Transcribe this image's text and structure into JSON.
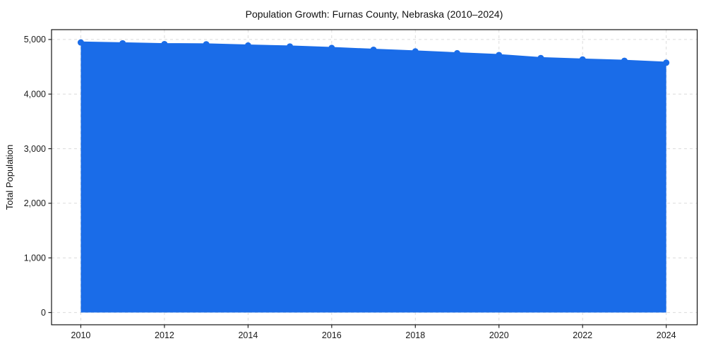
{
  "figure": {
    "background": "#ffffff",
    "plot_background": "#ffffff"
  },
  "chart_data": {
    "type": "area",
    "title": "Population Growth: Furnas County, Nebraska (2010–2024)",
    "xlabel": "",
    "ylabel": "Total Population",
    "x": [
      2010,
      2011,
      2012,
      2013,
      2014,
      2015,
      2016,
      2017,
      2018,
      2019,
      2020,
      2021,
      2022,
      2023,
      2024
    ],
    "series": [
      {
        "name": "Total Population",
        "values": [
          4945,
          4930,
          4915,
          4912,
          4890,
          4872,
          4845,
          4812,
          4782,
          4748,
          4715,
          4660,
          4634,
          4610,
          4575
        ]
      }
    ],
    "x_ticks": [
      2010,
      2012,
      2014,
      2016,
      2018,
      2020,
      2022,
      2024
    ],
    "x_tick_labels": [
      "2010",
      "2012",
      "2014",
      "2016",
      "2018",
      "2020",
      "2022",
      "2024"
    ],
    "y_ticks": [
      0,
      1000,
      2000,
      3000,
      4000,
      5000
    ],
    "y_tick_labels": [
      "0",
      "1,000",
      "2,000",
      "3,000",
      "4,000",
      "5,000"
    ],
    "xlim": [
      2009.3,
      2024.74
    ],
    "ylim": [
      -225,
      5180
    ],
    "fill_baseline": 0,
    "grid": true,
    "grid_style": "dashed",
    "legend_position": "none",
    "colors": {
      "line": "#1a6ce8",
      "marker": "#1a6ce8",
      "fill": "#1a6ce8",
      "fill_opacity": 0.13,
      "grid": "#d8d8d8",
      "spine": "#000000",
      "tick": "#222222",
      "text": "#111111"
    },
    "marker_radius": 4.5,
    "line_width": 2.8
  }
}
